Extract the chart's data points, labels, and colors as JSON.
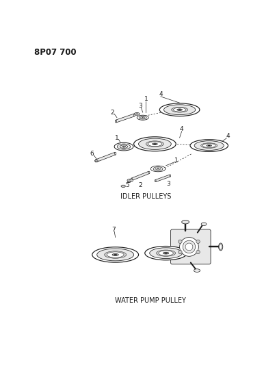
{
  "title": "8P07 700",
  "background_color": "#ffffff",
  "text_color": "#1a1a1a",
  "idler_label": "IDLER PULLEYS",
  "water_pump_label": "WATER PUMP PULLEY",
  "fig_width": 4.05,
  "fig_height": 5.33,
  "dpi": 100,
  "ec": "#1a1a1a",
  "lw": 0.7
}
